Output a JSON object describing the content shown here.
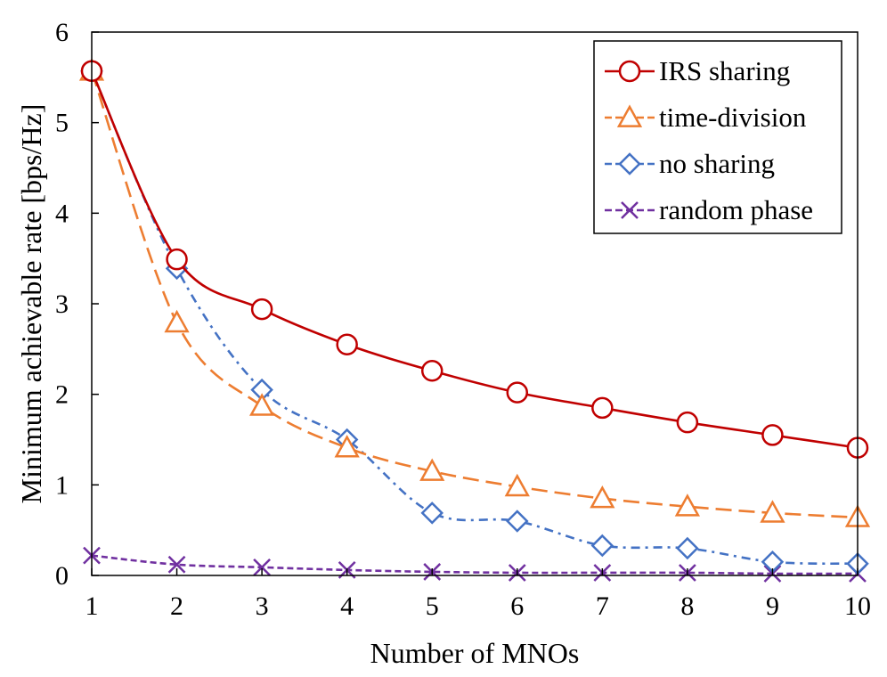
{
  "chart_data": {
    "type": "line",
    "title": "",
    "xlabel": "Number of MNOs",
    "ylabel": "Minimum achievable rate [bps/Hz]",
    "x": [
      1,
      2,
      3,
      4,
      5,
      6,
      7,
      8,
      9,
      10
    ],
    "xlim": [
      1,
      10
    ],
    "ylim": [
      0,
      6
    ],
    "xticks": [
      "1",
      "2",
      "3",
      "4",
      "5",
      "6",
      "7",
      "8",
      "9",
      "10"
    ],
    "yticks": [
      "0",
      "1",
      "2",
      "3",
      "4",
      "5",
      "6"
    ],
    "grid": false,
    "legend_position": "top-right",
    "series": [
      {
        "name": "IRS sharing",
        "color": "#C00000",
        "marker": "circle",
        "dash": "solid",
        "values": [
          5.57,
          3.49,
          2.94,
          2.55,
          2.26,
          2.02,
          1.85,
          1.69,
          1.55,
          1.41
        ]
      },
      {
        "name": "time-division",
        "color": "#ED7D31",
        "marker": "triangle",
        "dash": "dashed",
        "values": [
          5.57,
          2.79,
          1.87,
          1.41,
          1.15,
          0.98,
          0.85,
          0.76,
          0.69,
          0.64
        ]
      },
      {
        "name": "no sharing",
        "color": "#4472C4",
        "marker": "diamond",
        "dash": "dashdot",
        "values": [
          5.57,
          3.39,
          2.05,
          1.5,
          0.69,
          0.6,
          0.33,
          0.3,
          0.15,
          0.13
        ]
      },
      {
        "name": "random phase",
        "color": "#7030A0",
        "marker": "x",
        "dash": "dotted",
        "values": [
          0.22,
          0.12,
          0.09,
          0.06,
          0.04,
          0.03,
          0.03,
          0.03,
          0.02,
          0.02
        ]
      }
    ]
  }
}
